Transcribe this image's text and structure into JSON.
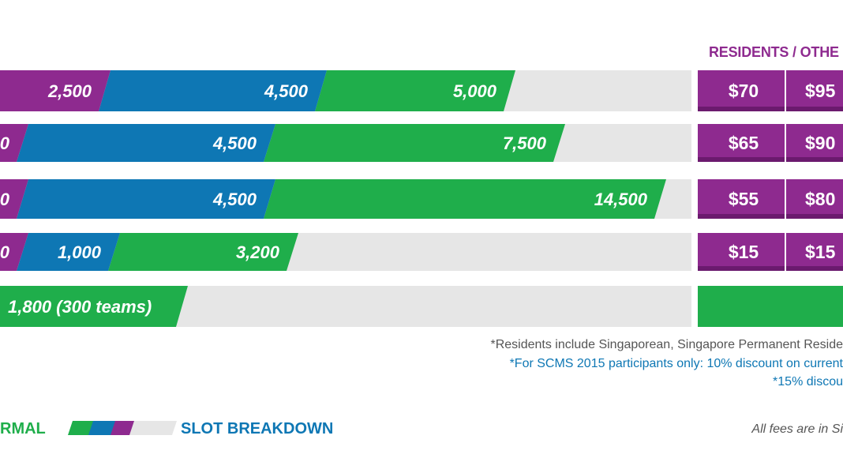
{
  "colors": {
    "purple": "#8e2a8f",
    "purple_dark": "#6b1a6e",
    "blue": "#0e77b4",
    "green": "#1fae4b",
    "track": "#e6e6e6"
  },
  "header": {
    "fee_columns": "RESIDENTS / OTHE"
  },
  "chart_data": {
    "type": "bar",
    "orientation": "horizontal",
    "stacked": true,
    "rows": [
      {
        "segments": [
          {
            "color": "purple",
            "value": 2500,
            "label": "2,500"
          },
          {
            "color": "blue",
            "value": 4500,
            "label": "4,500"
          },
          {
            "color": "green",
            "value": 5000,
            "label": "5,000"
          }
        ],
        "fees": {
          "residents": "$70",
          "others": "$95"
        }
      },
      {
        "segments": [
          {
            "color": "purple",
            "value": null,
            "label": "0"
          },
          {
            "color": "blue",
            "value": 4500,
            "label": "4,500"
          },
          {
            "color": "green",
            "value": 7500,
            "label": "7,500"
          }
        ],
        "fees": {
          "residents": "$65",
          "others": "$90"
        }
      },
      {
        "segments": [
          {
            "color": "purple",
            "value": null,
            "label": "0"
          },
          {
            "color": "blue",
            "value": 4500,
            "label": "4,500"
          },
          {
            "color": "green",
            "value": 14500,
            "label": "14,500"
          }
        ],
        "fees": {
          "residents": "$55",
          "others": "$80"
        }
      },
      {
        "segments": [
          {
            "color": "purple",
            "value": null,
            "label": "0"
          },
          {
            "color": "blue",
            "value": 1000,
            "label": "1,000"
          },
          {
            "color": "green",
            "value": 3200,
            "label": "3,200"
          }
        ],
        "fees": {
          "residents": "$15",
          "others": "$15"
        }
      },
      {
        "segments": [
          {
            "color": "green",
            "value": 1800,
            "label": "1,800 (300 teams)"
          }
        ],
        "fees": null
      }
    ]
  },
  "notes": {
    "line1": "*Residents include Singaporean, Singapore Permanent Reside",
    "line2": "*For SCMS 2015 participants only: 10% discount on current",
    "line3": "*15% discou"
  },
  "legend": {
    "normal": "RMAL",
    "slot_breakdown": "SLOT BREAKDOWN",
    "currency": "All fees are in Si"
  }
}
